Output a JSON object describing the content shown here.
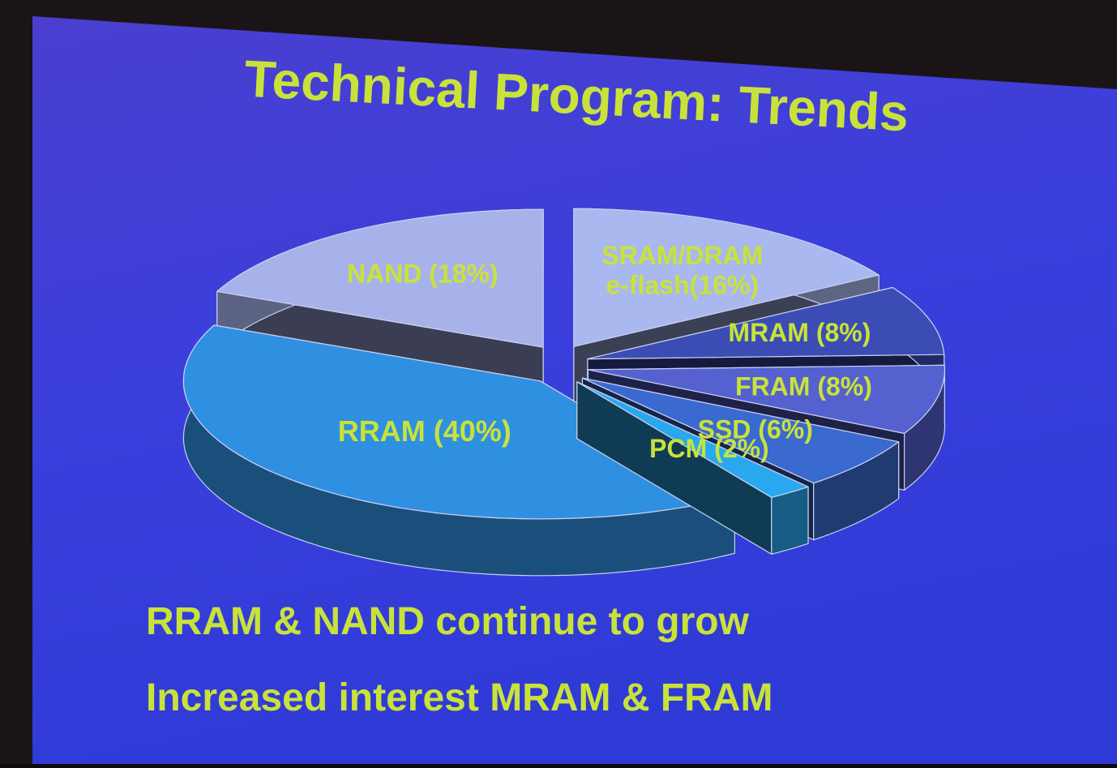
{
  "chart_data": {
    "type": "pie3d",
    "title": "Technical Program: Trends",
    "values": [
      16,
      8,
      8,
      6,
      2,
      40,
      18
    ],
    "value_labels": [
      "SRAM/DRAM e-flash(16%)",
      "MRAM (8%)",
      "FRAM (8%)",
      "SSD (6%)",
      "PCM (2%)",
      "RRAM (40%)",
      "NAND (18%)"
    ],
    "colors": [
      "#a9b8ef",
      "#3b4db5",
      "#5561cf",
      "#3a69cf",
      "#2aa8ef",
      "#2f90e2",
      "#a8b2ea"
    ],
    "notes": [
      "RRAM & NAND continue to grow",
      "Increased interest MRAM & FRAM"
    ]
  }
}
